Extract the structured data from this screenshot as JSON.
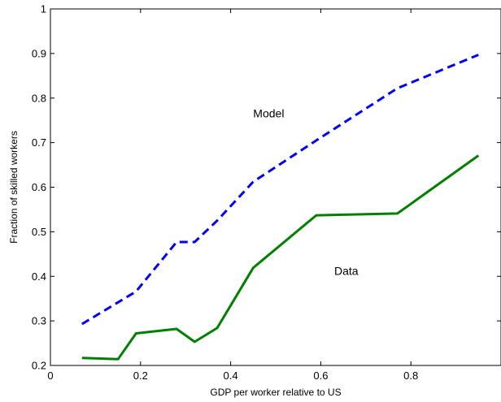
{
  "chart_data": {
    "type": "line",
    "title": "",
    "xlabel": "GDP per worker relative to US",
    "ylabel": "Fraction of skilled workers",
    "xlim": [
      0,
      1
    ],
    "ylim": [
      0.2,
      1
    ],
    "xticks": [
      0,
      0.2,
      0.4,
      0.6,
      0.8
    ],
    "xtick_labels": [
      "0",
      "0.2",
      "0.4",
      "0.6",
      "0.8"
    ],
    "yticks": [
      0.2,
      0.3,
      0.4,
      0.5,
      0.6,
      0.7,
      0.8,
      0.9,
      1
    ],
    "ytick_labels": [
      "0.2",
      "0.3",
      "0.4",
      "0.5",
      "0.6",
      "0.7",
      "0.8",
      "0.9",
      "1"
    ],
    "grid": false,
    "series": [
      {
        "name": "Model",
        "color": "#0000ff",
        "style": "dashed",
        "points": [
          [
            0.07,
            0.293
          ],
          [
            0.19,
            0.366
          ],
          [
            0.28,
            0.477
          ],
          [
            0.3,
            0.477
          ],
          [
            0.32,
            0.477
          ],
          [
            0.37,
            0.525
          ],
          [
            0.45,
            0.612
          ],
          [
            0.59,
            0.705
          ],
          [
            0.77,
            0.822
          ],
          [
            0.95,
            0.897
          ]
        ]
      },
      {
        "name": "Data",
        "color": "#008000",
        "style": "solid",
        "points": [
          [
            0.07,
            0.217
          ],
          [
            0.15,
            0.214
          ],
          [
            0.19,
            0.272
          ],
          [
            0.28,
            0.282
          ],
          [
            0.32,
            0.253
          ],
          [
            0.37,
            0.284
          ],
          [
            0.45,
            0.419
          ],
          [
            0.59,
            0.537
          ],
          [
            0.77,
            0.541
          ],
          [
            0.95,
            0.671
          ]
        ]
      }
    ],
    "annotations": [
      {
        "text": "Model",
        "x": 0.45,
        "y": 0.757
      },
      {
        "text": "Data",
        "x": 0.63,
        "y": 0.403
      }
    ]
  }
}
